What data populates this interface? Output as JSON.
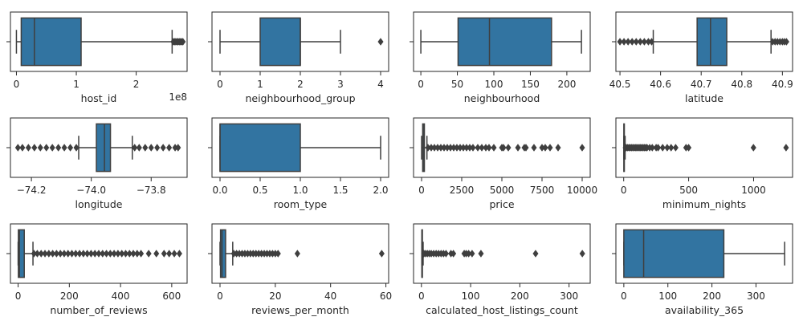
{
  "colors": {
    "box_fill": "#3274a1",
    "line": "#3f3f3f",
    "frame": "#262626",
    "background": "#ffffff"
  },
  "chart_data": [
    {
      "type": "box",
      "xlabel": "host_id",
      "offset_label": "1e8",
      "xlim": [
        -0.1,
        2.85
      ],
      "xticks": [
        0,
        1,
        2
      ],
      "xtick_labels": [
        "0",
        "1",
        "2"
      ],
      "box": {
        "whisker_low": 0.0,
        "q1": 0.08,
        "median": 0.3,
        "q3": 1.08,
        "whisker_high": 2.6
      },
      "outliers": [
        2.62,
        2.64,
        2.66,
        2.68,
        2.7,
        2.72,
        2.74,
        2.76,
        2.78
      ]
    },
    {
      "type": "box",
      "xlabel": "neighbourhood_group",
      "xlim": [
        -0.2,
        4.2
      ],
      "xticks": [
        0,
        1,
        2,
        3,
        4
      ],
      "xtick_labels": [
        "0",
        "1",
        "2",
        "3",
        "4"
      ],
      "box": {
        "whisker_low": 0,
        "q1": 1,
        "median": 2,
        "q3": 2,
        "whisker_high": 3
      },
      "outliers": [
        4
      ]
    },
    {
      "type": "box",
      "xlabel": "neighbourhood",
      "xlim": [
        -10,
        232
      ],
      "xticks": [
        0,
        50,
        100,
        150,
        200
      ],
      "xtick_labels": [
        "0",
        "50",
        "100",
        "150",
        "200"
      ],
      "box": {
        "whisker_low": 0,
        "q1": 51,
        "median": 94,
        "q3": 179,
        "whisker_high": 220
      },
      "outliers": []
    },
    {
      "type": "box",
      "xlabel": "latitude",
      "xlim": [
        40.49,
        40.925
      ],
      "xticks": [
        40.5,
        40.6,
        40.7,
        40.8,
        40.9
      ],
      "xtick_labels": [
        "40.5",
        "40.6",
        "40.7",
        "40.8",
        "40.9"
      ],
      "box": {
        "whisker_low": 40.582,
        "q1": 40.69,
        "median": 40.723,
        "q3": 40.763,
        "whisker_high": 40.872
      },
      "outliers": [
        40.5,
        40.51,
        40.52,
        40.53,
        40.54,
        40.55,
        40.56,
        40.57,
        40.578,
        40.876,
        40.882,
        40.888,
        40.894,
        40.9,
        40.905,
        40.91
      ]
    },
    {
      "type": "box",
      "xlabel": "longitude",
      "xlim": [
        -74.27,
        -73.68
      ],
      "xticks": [
        -74.2,
        -74.0,
        -73.8
      ],
      "xtick_labels": [
        "−74.2",
        "−74.0",
        "−73.8"
      ],
      "box": {
        "whisker_low": -74.042,
        "q1": -73.983,
        "median": -73.956,
        "q3": -73.936,
        "whisker_high": -73.863
      },
      "outliers": [
        -74.245,
        -74.23,
        -74.21,
        -74.19,
        -74.17,
        -74.15,
        -74.13,
        -74.11,
        -74.09,
        -74.07,
        -74.05,
        -73.855,
        -73.84,
        -73.82,
        -73.8,
        -73.78,
        -73.76,
        -73.74,
        -73.72,
        -73.71
      ]
    },
    {
      "type": "box",
      "xlabel": "room_type",
      "xlim": [
        -0.1,
        2.1
      ],
      "xticks": [
        0.0,
        0.5,
        1.0,
        1.5,
        2.0
      ],
      "xtick_labels": [
        "0.0",
        "0.5",
        "1.0",
        "1.5",
        "2.0"
      ],
      "box": {
        "whisker_low": 0,
        "q1": 0,
        "median": 0,
        "q3": 1,
        "whisker_high": 2
      },
      "outliers": []
    },
    {
      "type": "box",
      "xlabel": "price",
      "xlim": [
        -500,
        10500
      ],
      "xticks": [
        0,
        2500,
        5000,
        7500,
        10000
      ],
      "xtick_labels": [
        "0",
        "2500",
        "5000",
        "7500",
        "10000"
      ],
      "box": {
        "whisker_low": 0,
        "q1": 69,
        "median": 106,
        "q3": 175,
        "whisker_high": 334
      },
      "outliers": [
        400,
        600,
        800,
        1000,
        1200,
        1400,
        1600,
        1800,
        2000,
        2200,
        2400,
        2600,
        2800,
        3000,
        3200,
        3500,
        3750,
        4000,
        4200,
        4500,
        5000,
        5100,
        5400,
        6000,
        6400,
        6500,
        7000,
        7500,
        7700,
        8000,
        8500,
        10000
      ]
    },
    {
      "type": "box",
      "xlabel": "minimum_nights",
      "xlim": [
        -60,
        1300
      ],
      "xticks": [
        0,
        500,
        1000
      ],
      "xtick_labels": [
        "0",
        "500",
        "1000"
      ],
      "box": {
        "whisker_low": 1,
        "q1": 1,
        "median": 3,
        "q3": 5,
        "whisker_high": 11
      },
      "outliers": [
        14,
        20,
        30,
        40,
        50,
        60,
        70,
        80,
        90,
        100,
        110,
        120,
        130,
        140,
        150,
        160,
        170,
        180,
        200,
        220,
        250,
        265,
        300,
        335,
        365,
        400,
        480,
        500,
        999,
        1250
      ]
    },
    {
      "type": "box",
      "xlabel": "number_of_reviews",
      "xlim": [
        -30,
        660
      ],
      "xticks": [
        0,
        200,
        400,
        600
      ],
      "xtick_labels": [
        "0",
        "200",
        "400",
        "600"
      ],
      "box": {
        "whisker_low": 0,
        "q1": 1,
        "median": 5,
        "q3": 24,
        "whisker_high": 58
      },
      "outliers": [
        62,
        75,
        90,
        105,
        120,
        135,
        150,
        165,
        180,
        195,
        210,
        225,
        240,
        255,
        270,
        285,
        300,
        315,
        330,
        345,
        360,
        375,
        390,
        405,
        420,
        435,
        450,
        465,
        480,
        510,
        540,
        570,
        590,
        610,
        630
      ]
    },
    {
      "type": "box",
      "xlabel": "reviews_per_month",
      "xlim": [
        -2.9,
        61
      ],
      "xticks": [
        0,
        20,
        40,
        60
      ],
      "xtick_labels": [
        "0",
        "20",
        "40",
        "60"
      ],
      "box": {
        "whisker_low": 0,
        "q1": 0.19,
        "median": 0.72,
        "q3": 2.02,
        "whisker_high": 4.6
      },
      "outliers": [
        5,
        6,
        7,
        8,
        9,
        10,
        11,
        12,
        13,
        14,
        15,
        16,
        17,
        18,
        19,
        20,
        21,
        28,
        58.5
      ]
    },
    {
      "type": "box",
      "xlabel": "calculated_host_listings_count",
      "xlim": [
        -16,
        343
      ],
      "xticks": [
        0,
        100,
        200,
        300
      ],
      "xtick_labels": [
        "0",
        "100",
        "200",
        "300"
      ],
      "box": {
        "whisker_low": 1,
        "q1": 1,
        "median": 1,
        "q3": 2,
        "whisker_high": 3.5
      },
      "outliers": [
        5,
        8,
        12,
        16,
        20,
        25,
        30,
        35,
        40,
        45,
        50,
        60,
        65,
        87,
        91,
        96,
        103,
        121,
        232,
        327
      ]
    },
    {
      "type": "box",
      "xlabel": "availability_365",
      "xlim": [
        -18,
        383
      ],
      "xticks": [
        0,
        100,
        200,
        300
      ],
      "xtick_labels": [
        "0",
        "100",
        "200",
        "300"
      ],
      "box": {
        "whisker_low": 0,
        "q1": 0,
        "median": 45,
        "q3": 227,
        "whisker_high": 365
      },
      "outliers": []
    }
  ]
}
